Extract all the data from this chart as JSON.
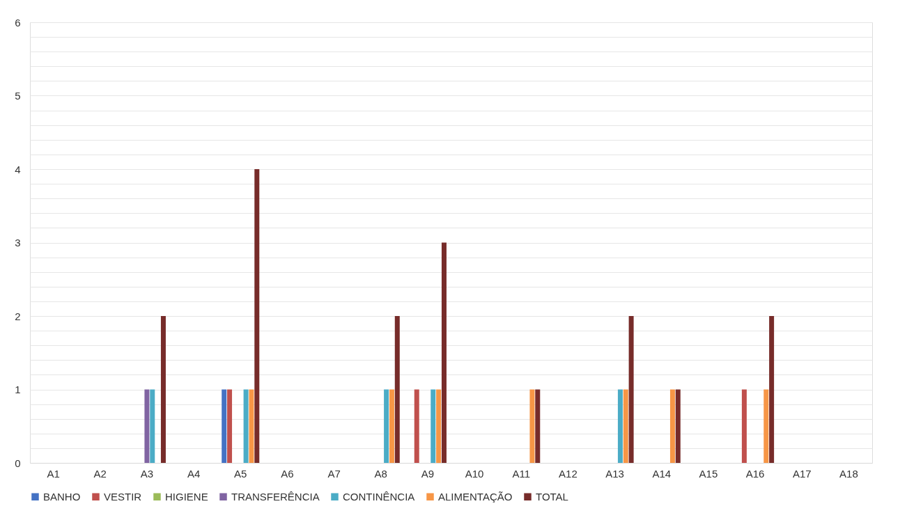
{
  "chart_data": {
    "type": "bar",
    "categories": [
      "A1",
      "A2",
      "A3",
      "A4",
      "A5",
      "A6",
      "A7",
      "A8",
      "A9",
      "A10",
      "A11",
      "A12",
      "A13",
      "A14",
      "A15",
      "A16",
      "A17",
      "A18"
    ],
    "series": [
      {
        "name": "BANHO",
        "color": "#4472c4",
        "values": [
          0,
          0,
          0,
          0,
          1,
          0,
          0,
          0,
          0,
          0,
          0,
          0,
          0,
          0,
          0,
          0,
          0,
          0
        ]
      },
      {
        "name": "VESTIR",
        "color": "#c0504d",
        "values": [
          0,
          0,
          0,
          0,
          1,
          0,
          0,
          0,
          1,
          0,
          0,
          0,
          0,
          0,
          0,
          1,
          0,
          0
        ]
      },
      {
        "name": "HIGIENE",
        "color": "#9bbb59",
        "values": [
          0,
          0,
          0,
          0,
          0,
          0,
          0,
          0,
          0,
          0,
          0,
          0,
          0,
          0,
          0,
          0,
          0,
          0
        ]
      },
      {
        "name": "TRANSFERÊNCIA",
        "color": "#8064a2",
        "values": [
          0,
          0,
          1,
          0,
          0,
          0,
          0,
          0,
          0,
          0,
          0,
          0,
          0,
          0,
          0,
          0,
          0,
          0
        ]
      },
      {
        "name": "CONTINÊNCIA",
        "color": "#4bacc6",
        "values": [
          0,
          0,
          1,
          0,
          1,
          0,
          0,
          1,
          1,
          0,
          0,
          0,
          1,
          0,
          0,
          0,
          0,
          0
        ]
      },
      {
        "name": "ALIMENTAÇÃO",
        "color": "#f79646",
        "values": [
          0,
          0,
          0,
          0,
          1,
          0,
          0,
          1,
          1,
          0,
          1,
          0,
          1,
          1,
          0,
          1,
          0,
          0
        ]
      },
      {
        "name": "TOTAL",
        "color": "#772c2a",
        "values": [
          0,
          0,
          2,
          0,
          4,
          0,
          0,
          2,
          3,
          0,
          1,
          0,
          2,
          1,
          0,
          2,
          0,
          0
        ]
      }
    ],
    "ylim": [
      0,
      6
    ],
    "yticks": [
      0,
      {
        "value": 0.2,
        "label": null
      },
      {
        "value": 0.4,
        "label": null
      },
      {
        "value": 0.6,
        "label": null
      },
      {
        "value": 0.8,
        "label": null
      },
      1,
      {
        "value": 1.2,
        "label": null
      },
      {
        "value": 1.4,
        "label": null
      },
      {
        "value": 1.6,
        "label": null
      },
      {
        "value": 1.8,
        "label": null
      },
      2,
      {
        "value": 2.2,
        "label": null
      },
      {
        "value": 2.4,
        "label": null
      },
      {
        "value": 2.6,
        "label": null
      },
      {
        "value": 2.8,
        "label": null
      },
      3,
      {
        "value": 3.2,
        "label": null
      },
      {
        "value": 3.4,
        "label": null
      },
      {
        "value": 3.6,
        "label": null
      },
      {
        "value": 3.8,
        "label": null
      },
      4,
      {
        "value": 4.2,
        "label": null
      },
      {
        "value": 4.4,
        "label": null
      },
      {
        "value": 4.6,
        "label": null
      },
      {
        "value": 4.8,
        "label": null
      },
      5,
      {
        "value": 5.2,
        "label": null
      },
      {
        "value": 5.4,
        "label": null
      },
      {
        "value": 5.6,
        "label": null
      },
      {
        "value": 5.8,
        "label": null
      },
      6
    ],
    "grid": "y",
    "legend": "bottom"
  }
}
